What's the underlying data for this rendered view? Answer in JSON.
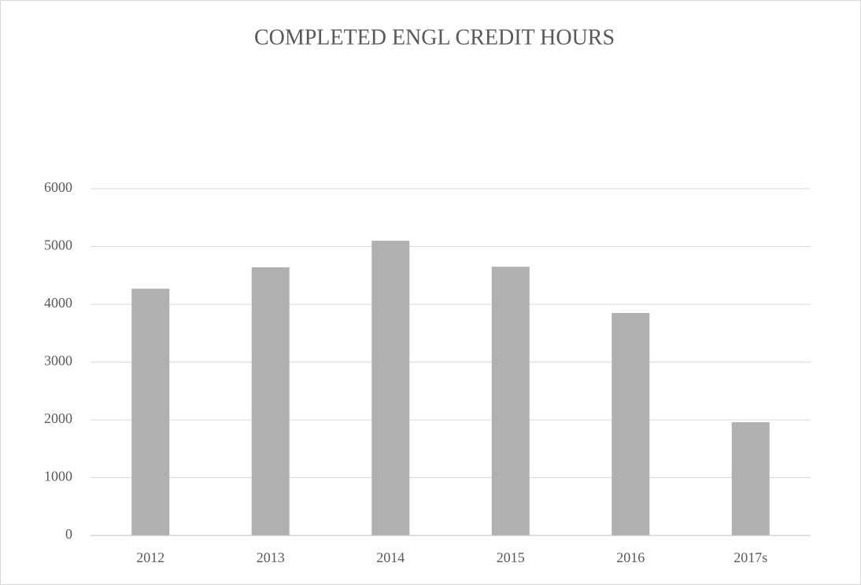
{
  "chart_data": {
    "type": "bar",
    "title": "COMPLETED ENGL CREDIT HOURS",
    "categories": [
      "2012",
      "2013",
      "2014",
      "2015",
      "2016",
      "2017s"
    ],
    "values": [
      4270,
      4640,
      5100,
      4650,
      3850,
      1960
    ],
    "color": "#b0b0b0",
    "ylim": [
      0,
      6000
    ],
    "yticks": [
      0,
      1000,
      2000,
      3000,
      4000,
      5000,
      6000
    ],
    "grid": true
  }
}
